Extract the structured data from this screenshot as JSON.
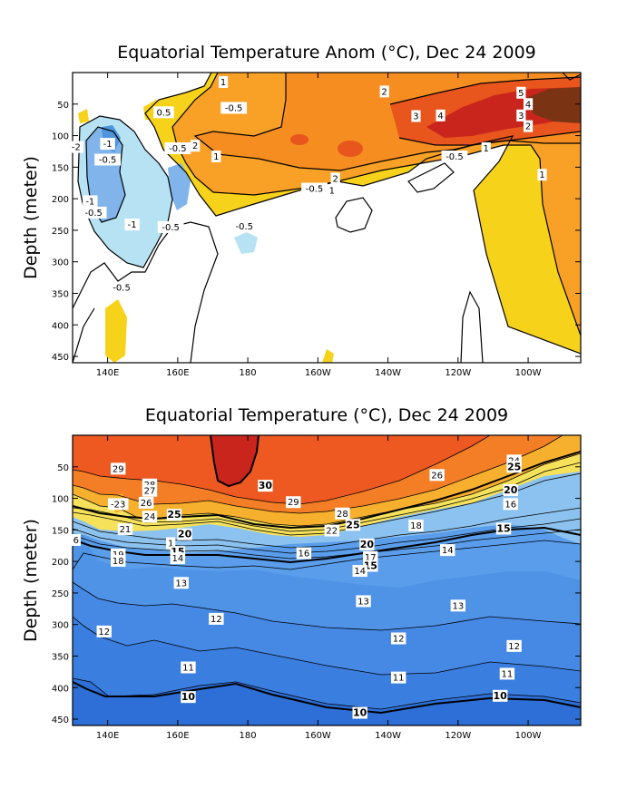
{
  "chart_data": [
    {
      "type": "heatmap",
      "title": "Equatorial Temperature Anom (°C), Dec 24 2009",
      "xlabel": "",
      "ylabel": "Depth (meter)",
      "x_range": [
        130,
        275
      ],
      "ylim": [
        0,
        460
      ],
      "y_inverted": true,
      "x_tick_labels": [
        "140E",
        "160E",
        "180",
        "160W",
        "140W",
        "120W",
        "100W"
      ],
      "x_tick_values": [
        140,
        160,
        180,
        200,
        220,
        240,
        260
      ],
      "y_tick_values": [
        50,
        100,
        150,
        200,
        250,
        300,
        350,
        400,
        450
      ],
      "contour_levels": [
        -2,
        -1,
        -0.5,
        0.5,
        1,
        2,
        3,
        4,
        5
      ],
      "colors": {
        "below_-2": "#4f95dd",
        "-2_to_-1": "#80b4ea",
        "-1_to_-0.5": "#b6e2f4",
        "-0.5_to_0.5": "#ffffff",
        "0.5_to_1": "#f7d21b",
        "1_to_2": "#f9a126",
        "2_to_3": "#f68d20",
        "3_to_4": "#e8551d",
        "4_to_5": "#c9251c",
        "above_5": "#7a3414"
      },
      "contour_labels": [
        {
          "text": "1",
          "x": 173,
          "depth": 15
        },
        {
          "text": "2",
          "x": 219,
          "depth": 30
        },
        {
          "text": "-0.5",
          "x": 176,
          "depth": 56
        },
        {
          "text": "0.5",
          "x": 156,
          "depth": 63
        },
        {
          "text": "3",
          "x": 228,
          "depth": 69
        },
        {
          "text": "4",
          "x": 235,
          "depth": 68
        },
        {
          "text": "5",
          "x": 258,
          "depth": 32
        },
        {
          "text": "4",
          "x": 260,
          "depth": 50
        },
        {
          "text": "3",
          "x": 258,
          "depth": 68
        },
        {
          "text": "2",
          "x": 260,
          "depth": 85
        },
        {
          "text": "-2",
          "x": 131,
          "depth": 118
        },
        {
          "text": "-1",
          "x": 140,
          "depth": 113
        },
        {
          "text": "-0.5",
          "x": 140,
          "depth": 138
        },
        {
          "text": "-0.5",
          "x": 160,
          "depth": 120
        },
        {
          "text": "2",
          "x": 165,
          "depth": 116
        },
        {
          "text": "1",
          "x": 171,
          "depth": 133
        },
        {
          "text": "1",
          "x": 248,
          "depth": 120
        },
        {
          "text": "-0.5",
          "x": 239,
          "depth": 133
        },
        {
          "text": "1",
          "x": 264,
          "depth": 162
        },
        {
          "text": "2",
          "x": 205,
          "depth": 168
        },
        {
          "text": "-0.5",
          "x": 199,
          "depth": 184
        },
        {
          "text": "1",
          "x": 204,
          "depth": 187
        },
        {
          "text": "-1",
          "x": 135,
          "depth": 204
        },
        {
          "text": "-0.5",
          "x": 136,
          "depth": 222
        },
        {
          "text": "-1",
          "x": 147,
          "depth": 241
        },
        {
          "text": "-0.5",
          "x": 158,
          "depth": 245
        },
        {
          "text": "-0.5",
          "x": 179,
          "depth": 244
        },
        {
          "text": "-0.5",
          "x": 144,
          "depth": 341
        }
      ]
    },
    {
      "type": "heatmap",
      "title": "Equatorial Temperature (°C), Dec 24 2009",
      "xlabel": "",
      "ylabel": "Depth (meter)",
      "x_range": [
        130,
        275
      ],
      "ylim": [
        0,
        460
      ],
      "y_inverted": true,
      "x_tick_labels": [
        "140E",
        "160E",
        "180",
        "160W",
        "140W",
        "120W",
        "100W"
      ],
      "x_tick_values": [
        140,
        160,
        180,
        200,
        220,
        240,
        260
      ],
      "y_tick_values": [
        50,
        100,
        150,
        200,
        250,
        300,
        350,
        400,
        450
      ],
      "contour_levels": [
        10,
        11,
        12,
        13,
        14,
        15,
        16,
        17,
        18,
        19,
        20,
        21,
        22,
        23,
        24,
        25,
        26,
        27,
        28,
        29,
        30
      ],
      "bold_levels": [
        10,
        15,
        20,
        25,
        30
      ],
      "colors": {
        "10_to_11": "#2d6fd6",
        "11_to_12": "#3a7fe0",
        "12_to_13": "#4589e4",
        "13_to_14": "#4f93e7",
        "14_to_15": "#5a9dea",
        "15_to_20": "#8cc2ef",
        "20_to_24": "#f5e15a",
        "24_to_26": "#f7b02e",
        "26_to_28": "#f47e26",
        "28_to_30": "#ee5821",
        "above_30": "#c9251c"
      },
      "contour_labels": [
        {
          "text": "29",
          "x": 143,
          "depth": 53
        },
        {
          "text": "30",
          "x": 185,
          "depth": 80
        },
        {
          "text": "28",
          "x": 152,
          "depth": 78
        },
        {
          "text": "27",
          "x": 152,
          "depth": 88
        },
        {
          "text": "-23",
          "x": 143,
          "depth": 109
        },
        {
          "text": "26",
          "x": 151,
          "depth": 107
        },
        {
          "text": "24",
          "x": 152,
          "depth": 129
        },
        {
          "text": "25",
          "x": 159,
          "depth": 126
        },
        {
          "text": "29",
          "x": 193,
          "depth": 106
        },
        {
          "text": "28",
          "x": 207,
          "depth": 124
        },
        {
          "text": "25",
          "x": 210,
          "depth": 142
        },
        {
          "text": "22",
          "x": 204,
          "depth": 151
        },
        {
          "text": "21",
          "x": 145,
          "depth": 149
        },
        {
          "text": "20",
          "x": 162,
          "depth": 157
        },
        {
          "text": "20",
          "x": 214,
          "depth": 173
        },
        {
          "text": "26",
          "x": 234,
          "depth": 63
        },
        {
          "text": "24",
          "x": 256,
          "depth": 40
        },
        {
          "text": "25",
          "x": 256,
          "depth": 50
        },
        {
          "text": "20",
          "x": 255,
          "depth": 87
        },
        {
          "text": "16",
          "x": 255,
          "depth": 109
        },
        {
          "text": "18",
          "x": 228,
          "depth": 143
        },
        {
          "text": "15",
          "x": 253,
          "depth": 148
        },
        {
          "text": "6",
          "x": 131,
          "depth": 166
        },
        {
          "text": "1",
          "x": 158,
          "depth": 171
        },
        {
          "text": "15",
          "x": 160,
          "depth": 185
        },
        {
          "text": "14",
          "x": 160,
          "depth": 195
        },
        {
          "text": "19",
          "x": 143,
          "depth": 189
        },
        {
          "text": "18",
          "x": 143,
          "depth": 199
        },
        {
          "text": "16",
          "x": 196,
          "depth": 187
        },
        {
          "text": "17",
          "x": 215,
          "depth": 193
        },
        {
          "text": "15",
          "x": 215,
          "depth": 207
        },
        {
          "text": "14",
          "x": 212,
          "depth": 215
        },
        {
          "text": "14",
          "x": 237,
          "depth": 182
        },
        {
          "text": "13",
          "x": 161,
          "depth": 234
        },
        {
          "text": "13",
          "x": 213,
          "depth": 263
        },
        {
          "text": "13",
          "x": 240,
          "depth": 270
        },
        {
          "text": "12",
          "x": 139,
          "depth": 311
        },
        {
          "text": "12",
          "x": 171,
          "depth": 291
        },
        {
          "text": "12",
          "x": 223,
          "depth": 322
        },
        {
          "text": "12",
          "x": 256,
          "depth": 334
        },
        {
          "text": "11",
          "x": 163,
          "depth": 368
        },
        {
          "text": "11",
          "x": 223,
          "depth": 384
        },
        {
          "text": "11",
          "x": 254,
          "depth": 378
        },
        {
          "text": "10",
          "x": 163,
          "depth": 415
        },
        {
          "text": "10",
          "x": 212,
          "depth": 440
        },
        {
          "text": "10",
          "x": 252,
          "depth": 413
        }
      ]
    }
  ]
}
